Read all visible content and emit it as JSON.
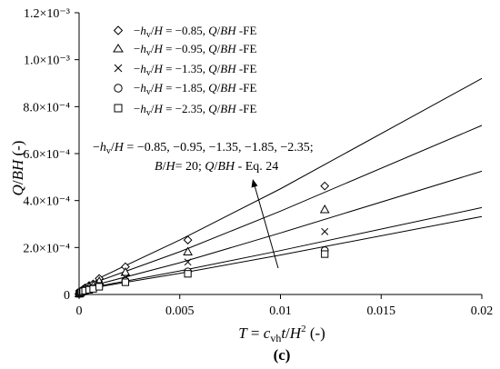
{
  "chart_data": {
    "type": "scatter",
    "title": "",
    "caption": "(c)",
    "xlabel": "T = c_vh t/H² (-)",
    "ylabel": "Q/BH (-)",
    "xlim": [
      0,
      0.02
    ],
    "ylim": [
      0,
      0.0012
    ],
    "x_ticks": [
      {
        "value": 0,
        "label": "0"
      },
      {
        "value": 0.005,
        "label": "0.005"
      },
      {
        "value": 0.01,
        "label": "0.01"
      },
      {
        "value": 0.015,
        "label": "0.015"
      },
      {
        "value": 0.02,
        "label": "0.02"
      }
    ],
    "y_ticks": [
      {
        "value": 0,
        "label": "0"
      },
      {
        "value": 0.0002,
        "label": "2.0×10⁻⁴"
      },
      {
        "value": 0.0004,
        "label": "4.0×10⁻⁴"
      },
      {
        "value": 0.0006,
        "label": "6.0×10⁻⁴"
      },
      {
        "value": 0.0008,
        "label": "8.0×10⁻⁴"
      },
      {
        "value": 0.001,
        "label": "1.0×10⁻³"
      },
      {
        "value": 0.0012,
        "label": "1.2×10⁻³"
      }
    ],
    "grid": false,
    "legend_position": "top-left",
    "series": [
      {
        "name": "−hv/H = −0.85, Q/BH -FE",
        "marker": "diamond",
        "points": [
          [
            1e-05,
            5e-06
          ],
          [
            5e-05,
            1.1e-05
          ],
          [
            0.0001,
            1.5e-05
          ],
          [
            0.0002,
            2.2e-05
          ],
          [
            0.0003,
            2.8e-05
          ],
          [
            0.0005,
            3.8e-05
          ],
          [
            0.0007,
            4.5e-05
          ],
          [
            0.001,
            6.8e-05
          ],
          [
            0.0023,
            0.000118
          ],
          [
            0.0054,
            0.000232
          ],
          [
            0.0122,
            0.000462
          ]
        ]
      },
      {
        "name": "−hv/H = −0.95, Q/BH -FE",
        "marker": "triangle",
        "points": [
          [
            1e-05,
            4e-06
          ],
          [
            5e-05,
            9e-06
          ],
          [
            0.0001,
            1.3e-05
          ],
          [
            0.0002,
            1.9e-05
          ],
          [
            0.0003,
            2.4e-05
          ],
          [
            0.0005,
            3.2e-05
          ],
          [
            0.0007,
            3.8e-05
          ],
          [
            0.001,
            5.6e-05
          ],
          [
            0.0023,
            9.5e-05
          ],
          [
            0.0054,
            0.000182
          ],
          [
            0.0122,
            0.000362
          ]
        ]
      },
      {
        "name": "−hv/H = −1.35, Q/BH -FE",
        "marker": "x",
        "points": [
          [
            1e-05,
            4e-06
          ],
          [
            5e-05,
            8e-06
          ],
          [
            0.0001,
            1.1e-05
          ],
          [
            0.0002,
            1.6e-05
          ],
          [
            0.0003,
            2e-05
          ],
          [
            0.0005,
            2.6e-05
          ],
          [
            0.0007,
            3.1e-05
          ],
          [
            0.001,
            4.4e-05
          ],
          [
            0.0023,
            7.3e-05
          ],
          [
            0.0054,
            0.000138
          ],
          [
            0.0122,
            0.000268
          ]
        ]
      },
      {
        "name": "−hv/H = −1.85, Q/BH -FE",
        "marker": "circle",
        "points": [
          [
            1e-05,
            3e-06
          ],
          [
            5e-05,
            7e-06
          ],
          [
            0.0001,
            1e-05
          ],
          [
            0.0002,
            1.4e-05
          ],
          [
            0.0003,
            1.7e-05
          ],
          [
            0.0005,
            2.2e-05
          ],
          [
            0.0007,
            2.6e-05
          ],
          [
            0.001,
            3.6e-05
          ],
          [
            0.0023,
            5.8e-05
          ],
          [
            0.0054,
            9.8e-05
          ],
          [
            0.0122,
            0.000188
          ]
        ]
      },
      {
        "name": "−hv/H = −2.35, Q/BH -FE",
        "marker": "square",
        "points": [
          [
            1e-05,
            3e-06
          ],
          [
            5e-05,
            6e-06
          ],
          [
            0.0001,
            9e-06
          ],
          [
            0.0002,
            1.3e-05
          ],
          [
            0.0003,
            1.6e-05
          ],
          [
            0.0005,
            2e-05
          ],
          [
            0.0007,
            2.4e-05
          ],
          [
            0.001,
            3.3e-05
          ],
          [
            0.0023,
            5.2e-05
          ],
          [
            0.0054,
            8.8e-05
          ],
          [
            0.0122,
            0.000172
          ]
        ]
      }
    ],
    "eq24_lines": [
      {
        "points": [
          [
            0,
            0
          ],
          [
            0.001,
            7e-05
          ],
          [
            0.005,
            0.000232
          ],
          [
            0.01,
            0.00045
          ],
          [
            0.02,
            0.00092
          ]
        ]
      },
      {
        "points": [
          [
            0,
            0
          ],
          [
            0.001,
            5.8e-05
          ],
          [
            0.005,
            0.000182
          ],
          [
            0.01,
            0.000355
          ],
          [
            0.02,
            0.00072
          ]
        ]
      },
      {
        "points": [
          [
            0,
            0
          ],
          [
            0.001,
            4.5e-05
          ],
          [
            0.005,
            0.000135
          ],
          [
            0.01,
            0.000262
          ],
          [
            0.02,
            0.000525
          ]
        ]
      },
      {
        "points": [
          [
            0,
            0
          ],
          [
            0.001,
            3.6e-05
          ],
          [
            0.005,
            0.0001
          ],
          [
            0.01,
            0.000187
          ],
          [
            0.02,
            0.00037
          ]
        ]
      },
      {
        "points": [
          [
            0,
            0
          ],
          [
            0.001,
            3.3e-05
          ],
          [
            0.005,
            9e-05
          ],
          [
            0.01,
            0.000168
          ],
          [
            0.02,
            0.000332
          ]
        ]
      }
    ],
    "annotation": {
      "line1": "−hv/H = −0.85, −0.95, −1.35, −1.85, −2.35;",
      "line2": "B/H= 20; Q/BH - Eq. 24"
    }
  }
}
